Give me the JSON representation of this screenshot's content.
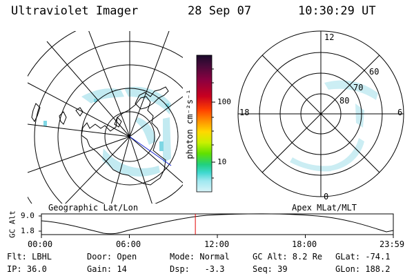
{
  "header": {
    "instrument": "Ultraviolet Imager",
    "date": "28 Sep 07",
    "time": "10:30:29 UT"
  },
  "left_map": {
    "caption": "Geographic Lat/Lon"
  },
  "right_map": {
    "caption": "Apex MLat/MLT",
    "mlt_labels": [
      "12",
      "18",
      "6",
      "0"
    ],
    "lat_labels": [
      "60",
      "70",
      "80"
    ]
  },
  "colorbar": {
    "unit_label": "photon cm⁻²s⁻¹",
    "ticks": [
      "100",
      "10"
    ],
    "colors": [
      "#1a0a2a",
      "#4a0a3a",
      "#8a0040",
      "#c80020",
      "#ff4000",
      "#ff9000",
      "#ffd800",
      "#c8f000",
      "#60e000",
      "#20d080",
      "#40d8d0",
      "#a0e8f0",
      "#d8f4f8"
    ]
  },
  "altitude_plot": {
    "ylabel": "GC Alt",
    "y_ticks": [
      "9.0",
      "1.8"
    ],
    "x_ticks": [
      "00:00",
      "06:00",
      "12:00",
      "18:00",
      "23:59"
    ],
    "marker_time_hours": 10.5
  },
  "status": {
    "row1": {
      "filter": "Flt: LBHL",
      "door": "Door: Open",
      "mode": "Mode: Normal",
      "gc_alt": "GC Alt: 8.2 Re",
      "glat": "GLat: -74.1"
    },
    "row2": {
      "ip": "IP: 36.0",
      "gain": "Gain: 14",
      "dsp": "Dsp:   -3.3",
      "seq": "Seq: 39",
      "glon": "GLon: 188.2"
    }
  }
}
